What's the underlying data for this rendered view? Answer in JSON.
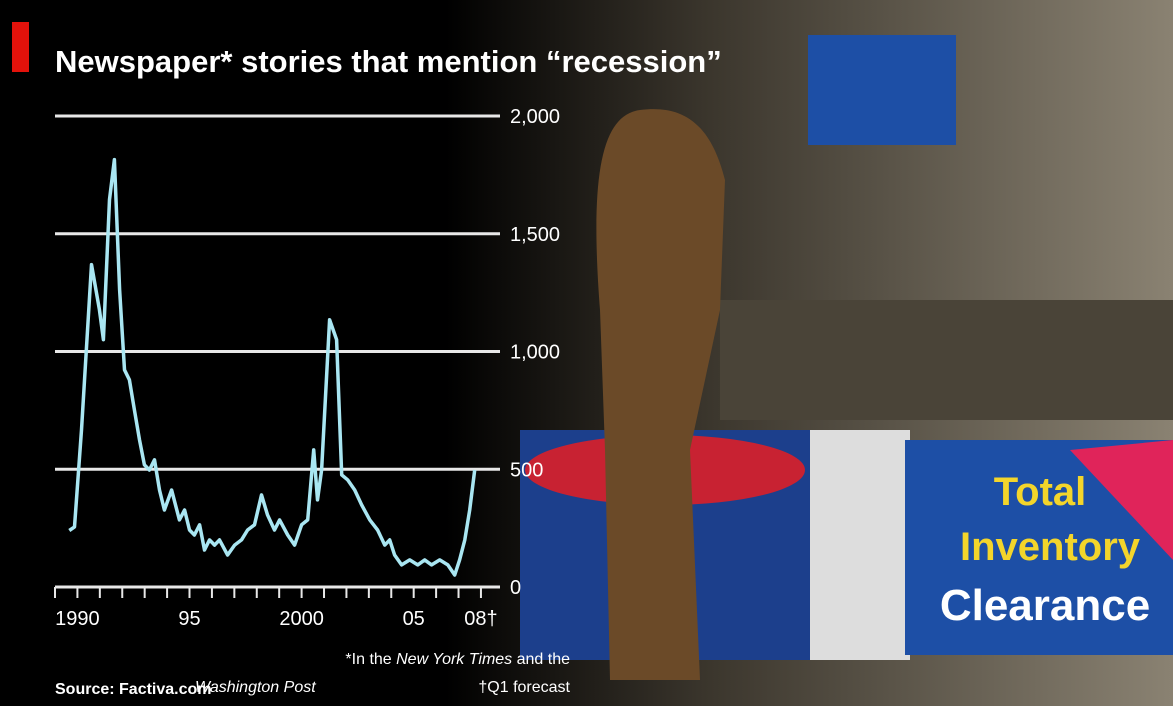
{
  "chart_data": {
    "type": "line",
    "title": "Newspaper* stories that mention “recession”",
    "source": "Source: Factiva.com",
    "notes": [
      "*In the ",
      "New York Times",
      " and the",
      "Washington Post",
      "†Q1 forecast"
    ],
    "xlim": [
      1989,
      2008.85
    ],
    "ylim": [
      0,
      2000
    ],
    "xticks": [
      1990,
      {
        "value": 1995,
        "label": "95"
      },
      2000,
      {
        "value": 2005,
        "label": "05"
      },
      {
        "value": 2008,
        "label": "08†"
      }
    ],
    "minor_xticks": [
      1989,
      1990,
      1991,
      1992,
      1993,
      1994,
      1995,
      1996,
      1997,
      1998,
      1999,
      2000,
      2001,
      2002,
      2003,
      2004,
      2005,
      2006,
      2007,
      2008
    ],
    "yticks": [
      0,
      500,
      {
        "value": 1000,
        "label": "1,000"
      },
      {
        "value": 1500,
        "label": "1,500"
      },
      {
        "value": 2000,
        "label": "2,000"
      }
    ],
    "grid": true,
    "series": [
      {
        "color": "#a9e6f2",
        "x": [
          1989.64,
          1989.87,
          1990.18,
          1990.63,
          1990.98,
          1991.16,
          1991.43,
          1991.65,
          1991.88,
          1992.1,
          1992.32,
          1992.54,
          1992.77,
          1992.99,
          1993.21,
          1993.44,
          1993.66,
          1993.88,
          1994.2,
          1994.55,
          1994.78,
          1995.0,
          1995.22,
          1995.45,
          1995.67,
          1995.89,
          1996.12,
          1996.34,
          1996.7,
          1997.01,
          1997.32,
          1997.59,
          1997.9,
          1998.21,
          1998.48,
          1998.79,
          1999.02,
          1999.38,
          1999.69,
          2000.0,
          2000.27,
          2000.54,
          2000.71,
          2000.89,
          2001.25,
          2001.56,
          2001.79,
          2002.05,
          2002.37,
          2002.68,
          2003.04,
          2003.39,
          2003.71,
          2003.93,
          2004.15,
          2004.46,
          2004.82,
          2005.18,
          2005.49,
          2005.8,
          2006.16,
          2006.52,
          2006.83,
          2007.05,
          2007.28,
          2007.5,
          2007.72
        ],
        "values": [
          240,
          255,
          667,
          1369,
          1178,
          1050,
          1645,
          1815,
          1263,
          922,
          880,
          752,
          625,
          519,
          497,
          540,
          412,
          327,
          412,
          285,
          327,
          242,
          221,
          264,
          157,
          200,
          178,
          200,
          136,
          178,
          200,
          242,
          264,
          391,
          306,
          242,
          285,
          221,
          178,
          264,
          285,
          582,
          370,
          497,
          1135,
          1050,
          476,
          455,
          412,
          348,
          285,
          242,
          178,
          200,
          136,
          94,
          115,
          94,
          115,
          94,
          115,
          94,
          51,
          115,
          200,
          327,
          497
        ]
      }
    ]
  },
  "photo": {
    "signs": [
      "Total",
      "Inventory",
      "Clearance"
    ]
  }
}
